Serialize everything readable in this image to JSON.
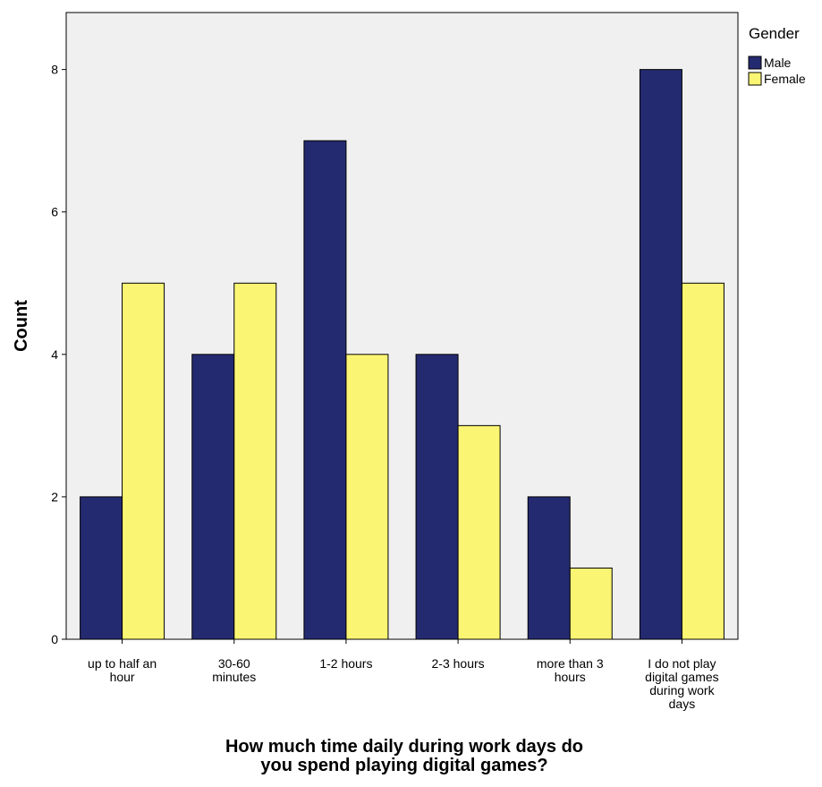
{
  "chart_data": {
    "type": "bar",
    "xlabel": "How much time daily during work days do you spend playing digital games?",
    "ylabel": "Count",
    "categories": [
      "up to half an hour",
      "30-60 minutes",
      "1-2 hours",
      "2-3 hours",
      "more than 3 hours",
      "I do not play digital games during work days"
    ],
    "category_label_lines": [
      [
        "up to half an",
        "hour"
      ],
      [
        "30-60",
        "minutes"
      ],
      [
        "1-2 hours"
      ],
      [
        "2-3 hours"
      ],
      [
        "more than 3",
        "hours"
      ],
      [
        "I do not play",
        "digital games",
        "during work",
        "days"
      ]
    ],
    "series": [
      {
        "name": "Male",
        "values": [
          2,
          4,
          7,
          4,
          2,
          8
        ],
        "color": "#242a70"
      },
      {
        "name": "Female",
        "values": [
          5,
          5,
          4,
          3,
          1,
          5
        ],
        "color": "#fbf574"
      }
    ],
    "ylim": [
      0,
      8.8
    ],
    "yticks": [
      0,
      2,
      4,
      6,
      8
    ],
    "grid": false,
    "plot_background": "#f0f0f0",
    "legend": {
      "title": "Gender",
      "position": "top-right, outside plot",
      "entries": [
        "Male",
        "Female"
      ]
    }
  }
}
